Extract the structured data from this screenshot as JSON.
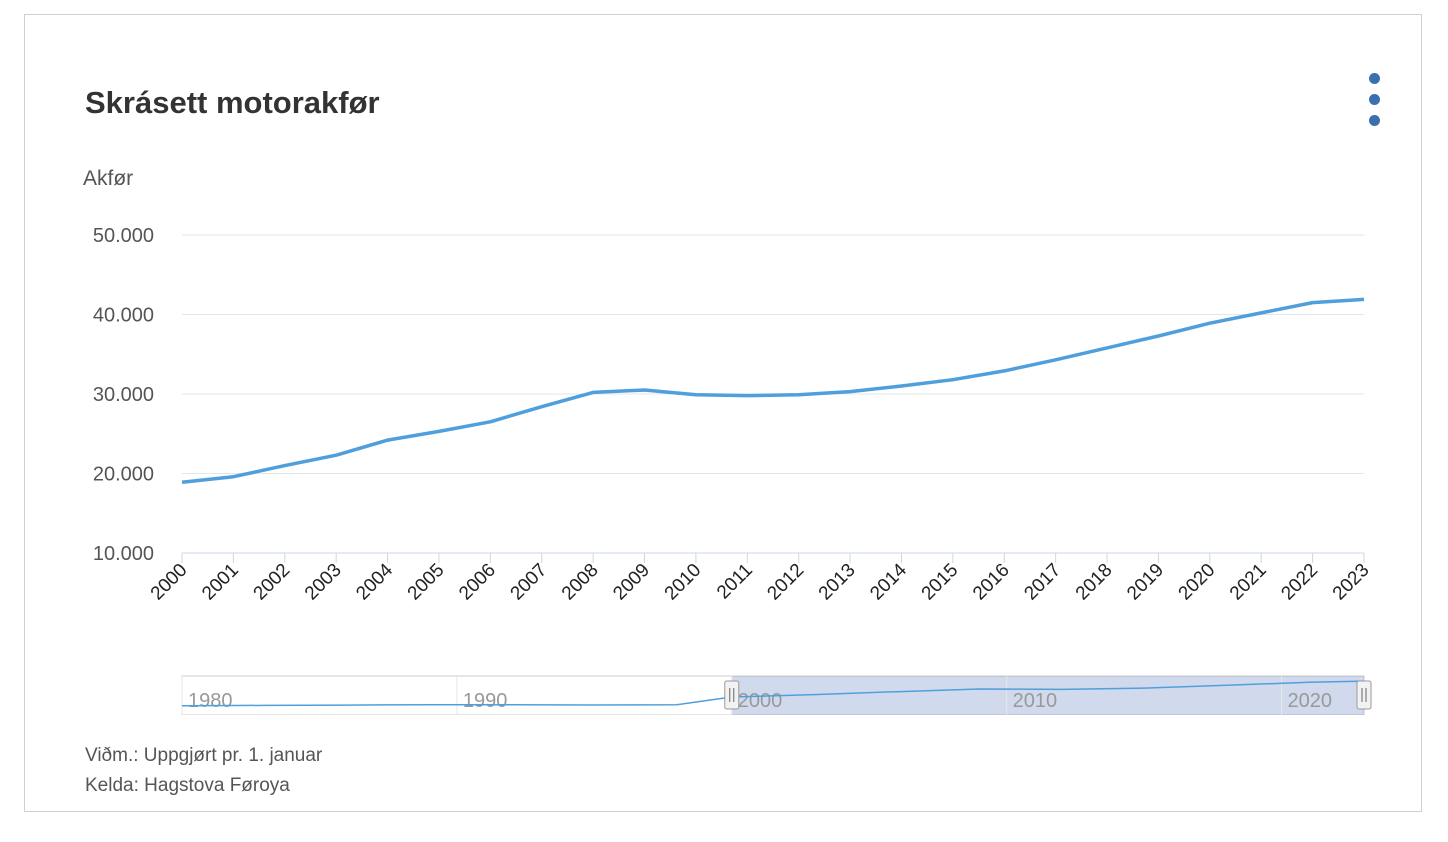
{
  "header": {
    "title": "Skrásett motorakfør",
    "menu_icon": "more-vertical-icon"
  },
  "chart_data": {
    "type": "line",
    "title": "Skrásett motorakfør",
    "xlabel": "",
    "ylabel": "Akfør",
    "ylim": [
      10000,
      50000
    ],
    "yticks": [
      10000,
      20000,
      30000,
      40000,
      50000
    ],
    "ytick_labels": [
      "10.000",
      "20.000",
      "30.000",
      "40.000",
      "50.000"
    ],
    "grid": true,
    "color": "#4f9fdc",
    "x": [
      "2000",
      "2001",
      "2002",
      "2003",
      "2004",
      "2005",
      "2006",
      "2007",
      "2008",
      "2009",
      "2010",
      "2011",
      "2012",
      "2013",
      "2014",
      "2015",
      "2016",
      "2017",
      "2018",
      "2019",
      "2020",
      "2021",
      "2022",
      "2023"
    ],
    "series": [
      {
        "values": [
          18900,
          19600,
          21000,
          22300,
          24200,
          25300,
          26500,
          28400,
          30200,
          30500,
          29900,
          29800,
          29900,
          30300,
          31000,
          31800,
          32900,
          34300,
          35800,
          37300,
          38900,
          40200,
          41500,
          41900
        ]
      }
    ],
    "navigator": {
      "tick_labels": [
        "1980",
        "1990",
        "2000",
        "2010",
        "2020"
      ],
      "range": [
        1980,
        2023
      ],
      "selected": [
        2000,
        2023
      ],
      "values": [
        [
          1980,
          6300
        ],
        [
          1983,
          6700
        ],
        [
          1986,
          7100
        ],
        [
          1989,
          7700
        ],
        [
          1992,
          7500
        ],
        [
          1995,
          7200
        ],
        [
          1998,
          7500
        ],
        [
          2000,
          18900
        ],
        [
          2003,
          22300
        ],
        [
          2006,
          26500
        ],
        [
          2009,
          30500
        ],
        [
          2012,
          29900
        ],
        [
          2015,
          31800
        ],
        [
          2018,
          35800
        ],
        [
          2021,
          40200
        ],
        [
          2023,
          41900
        ]
      ]
    }
  },
  "notes": {
    "remark": "Viðm.: Uppgjørt pr. 1. januar",
    "source": "Kelda: Hagstova Føroya"
  }
}
